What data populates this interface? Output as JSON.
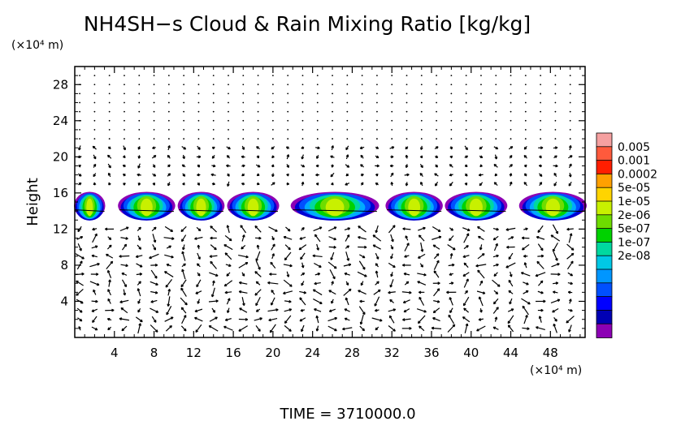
{
  "chart_data": {
    "type": "heatmap",
    "title": "NH4SH−s Cloud & Rain Mixing Ratio [kg/kg]",
    "ylabel": "Height",
    "y_unit": "(×10⁴ m)",
    "x_unit": "(×10⁴ m)",
    "xlim": [
      0,
      51.5
    ],
    "ylim": [
      0,
      30
    ],
    "x_ticks": [
      4,
      8,
      12,
      16,
      20,
      24,
      28,
      32,
      36,
      40,
      44,
      48
    ],
    "y_ticks": [
      4,
      8,
      12,
      16,
      20,
      24,
      28
    ],
    "x_tick_labels": [
      "4",
      "8",
      "12",
      "16",
      "20",
      "24",
      "28",
      "32",
      "36",
      "40",
      "44",
      "48"
    ],
    "y_tick_labels": [
      "4",
      "8",
      "12",
      "16",
      "20",
      "24",
      "28"
    ],
    "colorbar": {
      "labels": [
        "0.005",
        "0.001",
        "0.0002",
        "5e-05",
        "1e-05",
        "2e-06",
        "5e-07",
        "1e-07",
        "2e-08"
      ],
      "colors": [
        "#f5a0a0",
        "#ff5a3c",
        "#ff1e00",
        "#ffa000",
        "#ffd400",
        "#c8f000",
        "#6edc00",
        "#00d200",
        "#00d8a0",
        "#00c8e6",
        "#0096ff",
        "#0050ff",
        "#0000ff",
        "#0000b4",
        "#8c00b4"
      ]
    },
    "cloud_layer": {
      "y_range": [
        13,
        16
      ],
      "segments": [
        {
          "x_start": 0,
          "x_end": 3
        },
        {
          "x_start": 4.5,
          "x_end": 10
        },
        {
          "x_start": 10.5,
          "x_end": 15
        },
        {
          "x_start": 15.5,
          "x_end": 20.5
        },
        {
          "x_start": 22,
          "x_end": 30.5
        },
        {
          "x_start": 31.5,
          "x_end": 37
        },
        {
          "x_start": 37.5,
          "x_end": 43.5
        },
        {
          "x_start": 45,
          "x_end": 51.5
        }
      ]
    },
    "wind_vectors": true,
    "footer": "TIME  =  3710000.0"
  }
}
